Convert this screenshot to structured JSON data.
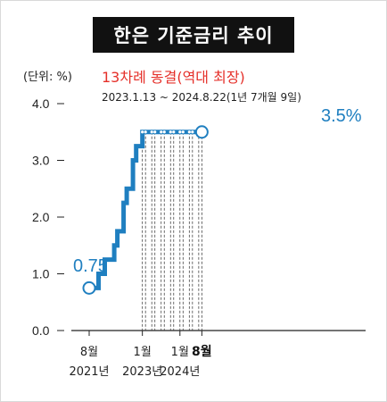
{
  "header": {
    "title": "한은 기준금리 추이"
  },
  "chart_data": {
    "type": "line",
    "step": true,
    "unit_label": "(단위: %)",
    "subtitle": "13차례 동결(역대 최장)",
    "period_note": "2023.1.13 ~ 2024.8.22(1년 7개월 9일)",
    "ylim": [
      0.0,
      4.0
    ],
    "yticks": [
      "0.0",
      "1.0",
      "2.0",
      "3.0",
      "4.0"
    ],
    "xticks": [
      {
        "month": "8월",
        "year": "2021년"
      },
      {
        "month": "1월",
        "year": "2023년"
      },
      {
        "month": "1월",
        "year": "2024년"
      },
      {
        "month": "8월",
        "year": ""
      }
    ],
    "series": [
      {
        "x": [
          "2021-08",
          "2021-11",
          "2022-01",
          "2022-04",
          "2022-05",
          "2022-07",
          "2022-08",
          "2022-10",
          "2022-11",
          "2023-01",
          "2023-02",
          "2023-04",
          "2023-05",
          "2023-07",
          "2023-08",
          "2023-10",
          "2023-11",
          "2024-01",
          "2024-02",
          "2024-04",
          "2024-05",
          "2024-07",
          "2024-08"
        ],
        "values": [
          0.75,
          1.0,
          1.25,
          1.5,
          1.75,
          2.25,
          2.5,
          3.0,
          3.25,
          3.5,
          3.5,
          3.5,
          3.5,
          3.5,
          3.5,
          3.5,
          3.5,
          3.5,
          3.5,
          3.5,
          3.5,
          3.5,
          3.5
        ]
      }
    ],
    "start_label": "0.75",
    "end_label": "3.5%",
    "line_color": "#1f7fc0"
  }
}
